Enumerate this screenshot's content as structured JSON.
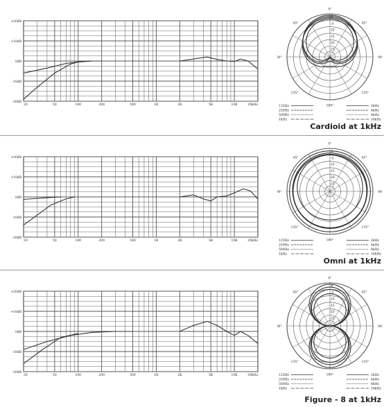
{
  "panels": [
    {
      "title": "Cardioid at 1kHz",
      "fr": {
        "y_ticks": [
          "+20dB",
          "+10dB",
          "0dB",
          "-10dB",
          "-20dB"
        ],
        "x_ticks": [
          "20",
          "50",
          "100",
          "200",
          "500",
          "1K",
          "2K",
          "5K",
          "10K",
          "20kHz"
        ]
      },
      "polar": {
        "angle_labels": [
          "0°",
          "45°",
          "90°",
          "135°",
          "180°",
          "135°",
          "90°",
          "45°"
        ],
        "radial_labels": [
          "0",
          "-5",
          "-10",
          "-15",
          "-20",
          "-25"
        ],
        "legend": {
          "left": [
            "125Hz",
            "250Hz",
            "500Hz",
            "1kHz"
          ],
          "right": [
            "2kHz",
            "4kHz",
            "8kHz",
            "16kHz"
          ]
        }
      }
    },
    {
      "title": "Omni at 1kHz",
      "fr": {
        "y_ticks": [
          "+20dB",
          "+10dB",
          "0dB",
          "-10dB",
          "-20dB"
        ],
        "x_ticks": [
          "20",
          "50",
          "100",
          "200",
          "500",
          "1K",
          "2K",
          "5K",
          "10K",
          "20kHz"
        ]
      },
      "polar": {
        "angle_labels": [
          "0°",
          "45°",
          "90°",
          "135°",
          "180°",
          "135°",
          "90°",
          "45°"
        ],
        "radial_labels": [
          "0",
          "-5",
          "-10",
          "-15",
          "-20",
          "-25"
        ],
        "legend": {
          "left": [
            "125Hz",
            "250Hz",
            "500Hz",
            "1kHz"
          ],
          "right": [
            "2kHz",
            "4kHz",
            "8kHz",
            "16kHz"
          ]
        }
      }
    },
    {
      "title": "Figure - 8 at 1kHz",
      "fr": {
        "y_ticks": [
          "+20dB",
          "+10dB",
          "0dB",
          "-10dB",
          "-20dB"
        ],
        "x_ticks": [
          "20",
          "50",
          "100",
          "200",
          "500",
          "1K",
          "2K",
          "5K",
          "10K",
          "20kHz"
        ]
      },
      "polar": {
        "angle_labels": [
          "0°",
          "45°",
          "90°",
          "135°",
          "180°",
          "135°",
          "90°",
          "45°"
        ],
        "radial_labels": [
          "0",
          "-5",
          "-10",
          "-15",
          "-20",
          "-25"
        ],
        "legend": {
          "left": [
            "125Hz",
            "250Hz",
            "500Hz",
            "1kHz"
          ],
          "right": [
            "2kHz",
            "4kHz",
            "8kHz",
            "16kHz"
          ]
        }
      }
    }
  ],
  "chart_data": [
    {
      "type": "line",
      "xlabel": "",
      "ylabel": "",
      "x_scale": "log",
      "xlim": [
        20,
        20000
      ],
      "ylim": [
        -20,
        20
      ],
      "grid": true,
      "series": [
        {
          "x": [
            20,
            40,
            70,
            100,
            150,
            200
          ],
          "y": [
            -6,
            -3.5,
            -1.2,
            -0.4,
            0,
            0
          ]
        },
        {
          "x": [
            20,
            30,
            50,
            80,
            100,
            150
          ],
          "y": [
            -19,
            -13,
            -6,
            -1.5,
            -0.5,
            0
          ]
        },
        {
          "x": [
            2000,
            3000,
            4500,
            6000,
            8000,
            10000,
            12000,
            15000,
            20000
          ],
          "y": [
            0,
            1,
            2,
            0.8,
            0,
            -0.2,
            1,
            0,
            -4
          ]
        }
      ]
    },
    {
      "type": "line",
      "xlabel": "",
      "ylabel": "",
      "x_scale": "log",
      "xlim": [
        20,
        20000
      ],
      "ylim": [
        -20,
        20
      ],
      "grid": true,
      "series": [
        {
          "x": [
            20,
            40,
            60
          ],
          "y": [
            -1.2,
            -0.4,
            0
          ]
        },
        {
          "x": [
            20,
            30,
            45,
            70,
            90
          ],
          "y": [
            -14,
            -9,
            -4,
            -1,
            0
          ]
        },
        {
          "x": [
            2000,
            3000,
            4000,
            5000,
            6000,
            8000,
            10000,
            13000,
            16000,
            20000
          ],
          "y": [
            0,
            1,
            -1,
            -2,
            0,
            0.5,
            2,
            4,
            3,
            -1
          ]
        }
      ]
    },
    {
      "type": "line",
      "xlabel": "",
      "ylabel": "",
      "x_scale": "log",
      "xlim": [
        20,
        20000
      ],
      "ylim": [
        -20,
        20
      ],
      "grid": true,
      "series": [
        {
          "x": [
            20,
            40,
            80,
            150,
            300,
            500
          ],
          "y": [
            -9,
            -5,
            -2,
            -0.5,
            0,
            0
          ]
        },
        {
          "x": [
            20,
            35,
            60,
            100
          ],
          "y": [
            -16,
            -9,
            -3,
            -1
          ]
        },
        {
          "x": [
            2000,
            3000,
            4500,
            6000,
            8000,
            10000,
            12000,
            15000,
            20000
          ],
          "y": [
            0,
            3,
            5,
            3,
            0,
            -2,
            0,
            -2,
            -6
          ]
        }
      ]
    }
  ],
  "colors": {
    "line": "#333333",
    "grid": "#555555",
    "divider": "#9a9a9a"
  }
}
